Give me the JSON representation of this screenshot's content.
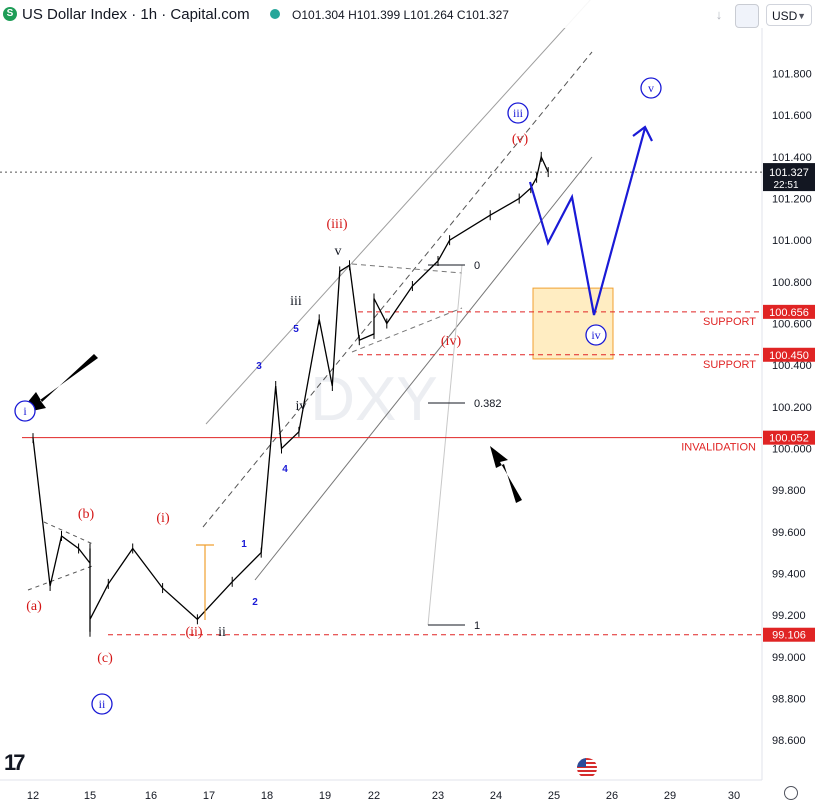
{
  "header": {
    "symbol_initial": "S",
    "title": "US Dollar Index · 1h · Capital.com",
    "ohlc": [
      {
        "label": "O",
        "value": "101.304"
      },
      {
        "label": "H",
        "value": "101.399"
      },
      {
        "label": "L",
        "value": "101.264"
      },
      {
        "label": "C",
        "value": "101.327"
      }
    ],
    "currency": "USD",
    "icons": [
      "down-arrow-icon",
      "snapshot-icon"
    ]
  },
  "watermark": "DXY",
  "colors": {
    "up": "#000000",
    "wave_blue": "#1a1ad6",
    "wave_red": "#d41515",
    "level_red": "#e02424",
    "support_fill": "#ffe5a8",
    "support_border": "#f0a030",
    "price_tag": "#131722"
  },
  "chart_data": {
    "type": "line",
    "title": "US Dollar Index · 1h · Capital.com",
    "xlabel": "",
    "ylabel": "",
    "ylim": [
      98.45,
      102.1
    ],
    "x_ticks": [
      "12",
      "15",
      "16",
      "17",
      "18",
      "19",
      "22",
      "23",
      "24",
      "25",
      "26",
      "29",
      "30"
    ],
    "y_ticks": [
      "101.800",
      "101.600",
      "101.400",
      "101.200",
      "101.000",
      "100.800",
      "100.600",
      "100.400",
      "100.200",
      "100.000",
      "99.800",
      "99.600",
      "99.400",
      "99.200",
      "99.000",
      "98.800",
      "98.600"
    ],
    "grid": false,
    "series": [
      {
        "x": [
          12.0,
          12.3,
          12.5,
          12.8,
          13.0,
          13.3,
          13.5,
          13.9,
          14.3,
          14.9,
          15.3,
          15.7,
          16.2,
          16.8,
          17.4,
          17.9,
          18.15,
          18.25,
          18.55,
          18.9,
          19.15,
          19.3,
          19.5,
          19.7,
          20.1,
          20.5,
          21.0,
          21.4,
          22.2,
          22.6,
          23.0,
          23.2,
          23.9,
          24.4,
          24.6,
          24.7,
          24.78,
          24.9
        ],
        "values": [
          100.05,
          99.34,
          99.58,
          99.52,
          99.45,
          99.52,
          99.42,
          99.12,
          99.28,
          99.18,
          99.35,
          99.52,
          99.33,
          99.18,
          99.36,
          99.5,
          100.3,
          100.0,
          100.08,
          100.62,
          100.3,
          100.85,
          100.88,
          100.52,
          100.55,
          100.6,
          100.7,
          100.72,
          100.6,
          100.78,
          100.9,
          101.0,
          101.12,
          101.2,
          101.25,
          101.3,
          101.4,
          101.327
        ]
      }
    ],
    "annotations": {
      "current_price": "101.327",
      "countdown": "22:51",
      "levels": [
        {
          "label": "SUPPORT",
          "value": "100.656",
          "tag": "100.656"
        },
        {
          "label": "SUPPORT",
          "value": "100.450",
          "tag": "100.450"
        },
        {
          "label": "INVALIDATION",
          "value": "100.052",
          "tag": "100.052"
        },
        {
          "label": "",
          "value": "99.106",
          "tag": "99.106"
        }
      ],
      "fib": [
        "0",
        "0.382",
        "1"
      ],
      "waves_blue_circle": [
        "i",
        "ii",
        "iii",
        "iv",
        "v"
      ],
      "waves_red": [
        "(a)",
        "(b)",
        "(c)",
        "(i)",
        "(ii)",
        "(iii)",
        "(iv)",
        "(v)"
      ],
      "waves_black": [
        "ii",
        "iii",
        "iv",
        "v"
      ],
      "waves_small_blue": [
        "1",
        "2",
        "3",
        "4",
        "5"
      ]
    }
  }
}
